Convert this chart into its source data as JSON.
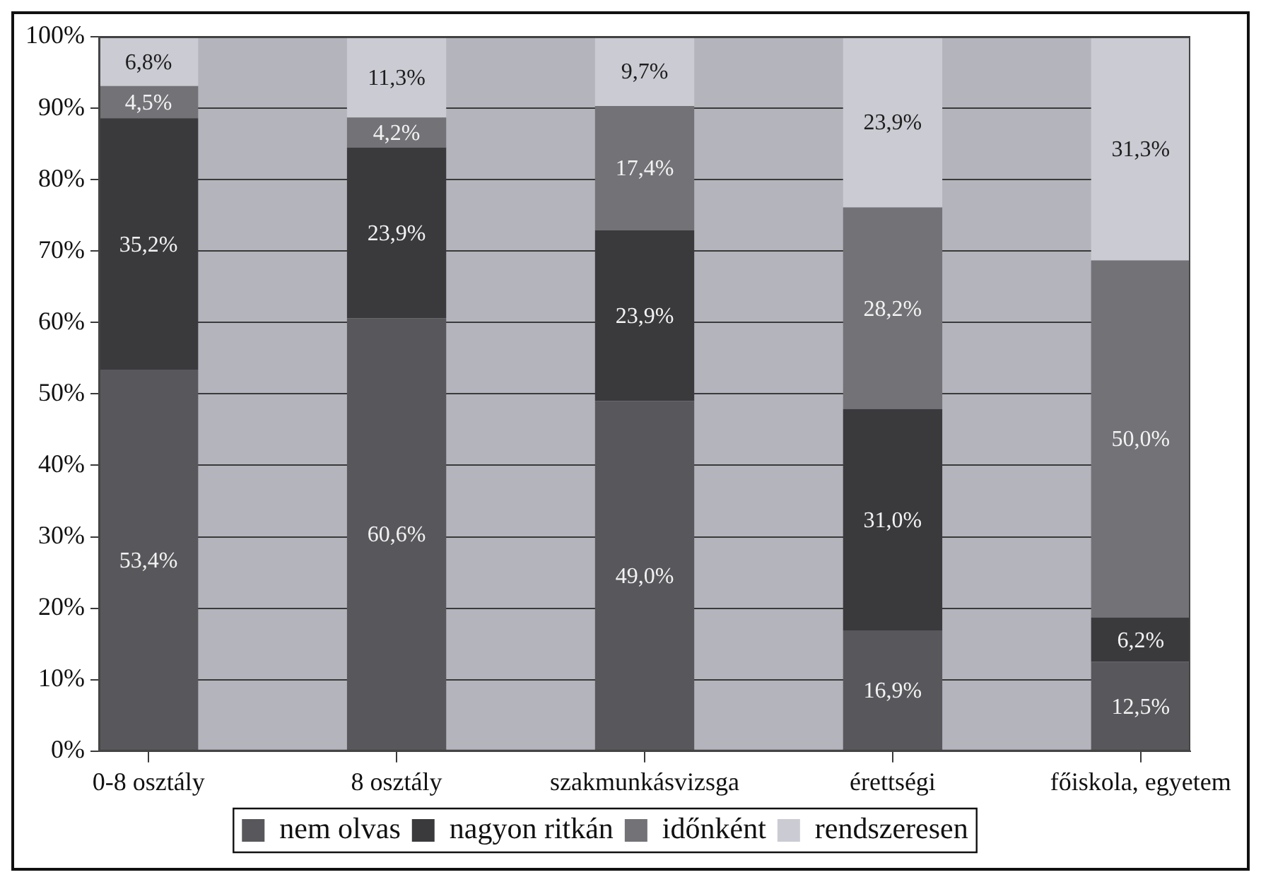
{
  "chart_data": {
    "type": "bar",
    "stacked": true,
    "categories": [
      "0-8 osztály",
      "8 osztály",
      "szakmunkásvizsga",
      "érettségi",
      "főiskola, egyetem"
    ],
    "series": [
      {
        "name": "nem olvas",
        "color": "#58585c",
        "values": [
          53.4,
          60.6,
          49.0,
          16.9,
          12.5
        ],
        "value_labels": [
          "53,4%",
          "60,6%",
          "49,0%",
          "16,9%",
          "12,5%"
        ]
      },
      {
        "name": "nagyon ritkán",
        "color": "#3a3a3d",
        "values": [
          35.2,
          23.9,
          23.9,
          31.0,
          6.2
        ],
        "value_labels": [
          "35,2%",
          "23,9%",
          "23,9%",
          "31,0%",
          "6,2%"
        ]
      },
      {
        "name": "időnként",
        "color": "#727277",
        "values": [
          4.5,
          4.2,
          17.4,
          28.2,
          50.0
        ],
        "value_labels": [
          "4,5%",
          "4,2%",
          "17,4%",
          "28,2%",
          "50,0%"
        ]
      },
      {
        "name": "rendszeresen",
        "color": "#cbcbd4",
        "values": [
          6.8,
          11.3,
          9.7,
          23.9,
          31.3
        ],
        "value_labels": [
          "6,8%",
          "11,3%",
          "9,7%",
          "23,9%",
          "31,3%"
        ]
      }
    ],
    "ylim": [
      0,
      100
    ],
    "yticks": [
      {
        "value": 0,
        "label": "0%"
      },
      {
        "value": 10,
        "label": "10%"
      },
      {
        "value": 20,
        "label": "20%"
      },
      {
        "value": 30,
        "label": "30%"
      },
      {
        "value": 40,
        "label": "40%"
      },
      {
        "value": 50,
        "label": "50%"
      },
      {
        "value": 60,
        "label": "60%"
      },
      {
        "value": 70,
        "label": "70%"
      },
      {
        "value": 80,
        "label": "80%"
      },
      {
        "value": 90,
        "label": "90%"
      },
      {
        "value": 100,
        "label": "100%"
      }
    ],
    "grid": "y",
    "legend": "bottom"
  }
}
